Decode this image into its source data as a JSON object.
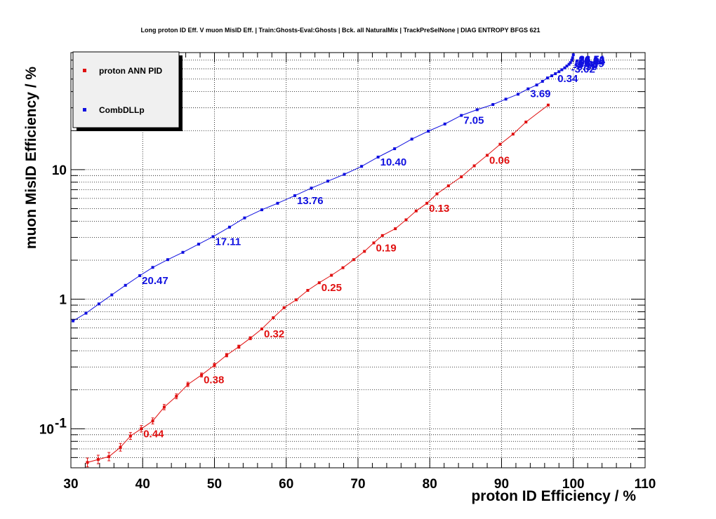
{
  "chart_data": {
    "type": "line",
    "title": "Long proton ID Eff. V muon MisID Eff. | Train:Ghosts-Eval:Ghosts | Bck. all NaturalMix | TrackPreSelNone | DIAG ENTROPY BFGS 621",
    "xlabel": "proton ID Efficiency / %",
    "ylabel": "muon MisID Efficiency / %",
    "xlim": [
      30,
      110
    ],
    "ylim": [
      0.05,
      80
    ],
    "yscale": "log",
    "grid": true,
    "legend_position": "top-left",
    "x_ticks": [
      "30",
      "40",
      "50",
      "60",
      "70",
      "80",
      "90",
      "100",
      "110"
    ],
    "y_ticks": [
      {
        "value": 0.1,
        "base": "10",
        "exp": "-1"
      },
      {
        "value": 1,
        "label": "1"
      },
      {
        "value": 10,
        "label": "10"
      }
    ],
    "series": [
      {
        "name": "proton ANN PID",
        "color": "#e01010",
        "x": [
          32.3,
          33.8,
          35.3,
          36.9,
          38.3,
          39.8,
          41.4,
          43.0,
          44.7,
          46.3,
          48.2,
          50.0,
          51.7,
          53.4,
          55.0,
          56.6,
          58.2,
          59.7,
          61.4,
          63.0,
          64.6,
          66.3,
          67.9,
          69.4,
          70.9,
          72.2,
          73.4,
          75.2,
          76.7,
          78.1,
          79.6,
          81.0,
          82.6,
          84.4,
          86.2,
          88.0,
          89.8,
          91.6,
          93.4,
          96.5
        ],
        "y": [
          0.055,
          0.058,
          0.061,
          0.072,
          0.088,
          0.1,
          0.115,
          0.147,
          0.178,
          0.22,
          0.26,
          0.31,
          0.37,
          0.43,
          0.5,
          0.59,
          0.72,
          0.86,
          0.99,
          1.17,
          1.34,
          1.53,
          1.75,
          2.02,
          2.34,
          2.72,
          3.1,
          3.5,
          4.1,
          4.8,
          5.5,
          6.5,
          7.5,
          8.8,
          10.7,
          12.9,
          15.7,
          18.8,
          23.3,
          31.5
        ],
        "cut_labels": [
          {
            "x": 39.8,
            "y": 0.1,
            "text": "0.44"
          },
          {
            "x": 48.2,
            "y": 0.26,
            "text": "0.38"
          },
          {
            "x": 56.6,
            "y": 0.59,
            "text": "0.32"
          },
          {
            "x": 64.6,
            "y": 1.34,
            "text": "0.25"
          },
          {
            "x": 72.2,
            "y": 2.72,
            "text": "0.19"
          },
          {
            "x": 79.6,
            "y": 5.5,
            "text": "0.13"
          },
          {
            "x": 88.0,
            "y": 12.9,
            "text": "0.06"
          }
        ]
      },
      {
        "name": "CombDLLp",
        "color": "#1010e0",
        "x": [
          30.3,
          32.1,
          33.9,
          35.7,
          37.6,
          39.6,
          41.4,
          43.5,
          45.6,
          47.8,
          49.8,
          52.1,
          54.2,
          56.6,
          58.8,
          61.2,
          63.5,
          65.8,
          68.1,
          70.5,
          72.8,
          75.1,
          77.5,
          79.8,
          82.1,
          84.4,
          86.6,
          88.8,
          90.6,
          92.3,
          93.7,
          94.9,
          95.7,
          96.4,
          97.0,
          97.5,
          98.0,
          98.4,
          98.8,
          99.1,
          99.4,
          99.6,
          99.8,
          99.9,
          100.0
        ],
        "y": [
          0.68,
          0.78,
          0.92,
          1.08,
          1.28,
          1.52,
          1.76,
          2.02,
          2.3,
          2.66,
          3.04,
          3.6,
          4.24,
          4.9,
          5.5,
          6.3,
          7.2,
          8.15,
          9.2,
          10.6,
          12.5,
          14.5,
          17.2,
          19.8,
          22.5,
          26.2,
          29.0,
          31.8,
          35.0,
          38.2,
          42.0,
          45.0,
          48.0,
          51.0,
          53.0,
          55.0,
          57.0,
          59.0,
          61.0,
          63.0,
          65.0,
          67.0,
          70.0,
          73.0,
          77.0
        ],
        "cut_labels": [
          {
            "x": 39.6,
            "y": 1.52,
            "text": "20.47"
          },
          {
            "x": 49.8,
            "y": 3.04,
            "text": "17.11"
          },
          {
            "x": 61.2,
            "y": 6.3,
            "text": "13.76"
          },
          {
            "x": 72.8,
            "y": 12.5,
            "text": "10.40"
          },
          {
            "x": 84.4,
            "y": 26.2,
            "text": "7.05"
          },
          {
            "x": 93.7,
            "y": 42.0,
            "text": "3.69"
          },
          {
            "x": 97.5,
            "y": 55.0,
            "text": "0.34"
          },
          {
            "x": 99.4,
            "y": 65.0,
            "text": "-3.02"
          },
          {
            "x": 99.7,
            "y": 68.0,
            "text": "-6.38"
          },
          {
            "x": 99.8,
            "y": 70.5,
            "text": "-9.73"
          },
          {
            "x": 99.85,
            "y": 72.0,
            "text": "-13.09"
          },
          {
            "x": 99.9,
            "y": 73.5,
            "text": "-16.44"
          },
          {
            "x": 99.93,
            "y": 75.0,
            "text": "-19.80"
          },
          {
            "x": 99.96,
            "y": 76.0,
            "text": "-23.16"
          },
          {
            "x": 99.98,
            "y": 77.0,
            "text": "-26.51"
          },
          {
            "x": 100.0,
            "y": 77.5,
            "text": "-36.51"
          }
        ]
      }
    ]
  }
}
